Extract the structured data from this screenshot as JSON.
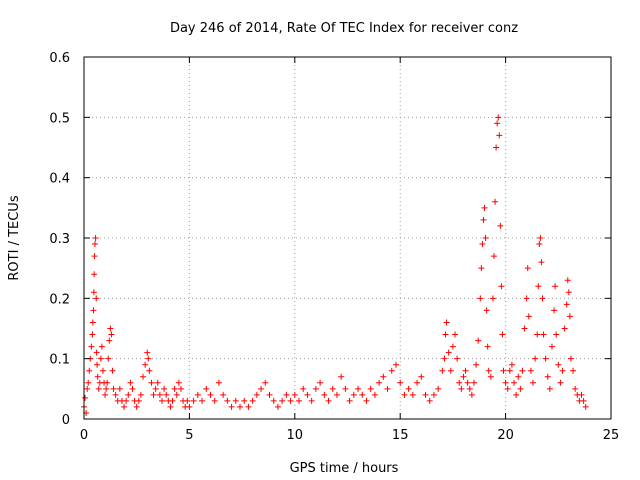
{
  "chart_data": {
    "type": "scatter",
    "title": "Day 246 of 2014, Rate Of TEC Index for receiver conz",
    "xlabel": "GPS time / hours",
    "ylabel": "ROTI / TECUs",
    "xlim": [
      0,
      25
    ],
    "ylim": [
      0,
      0.6
    ],
    "xticks": [
      0,
      5,
      10,
      15,
      20,
      25
    ],
    "yticks": [
      0,
      0.1,
      0.2,
      0.3,
      0.4,
      0.5,
      0.6
    ],
    "ytick_labels": [
      "0",
      "0.1",
      "0.2",
      "0.3",
      "0.4",
      "0.5",
      "0.6"
    ],
    "grid": true,
    "marker": "+",
    "color": "#ff0000",
    "series": [
      {
        "points": [
          [
            0.0,
            0.02
          ],
          [
            0.05,
            0.035
          ],
          [
            0.1,
            0.01
          ],
          [
            0.15,
            0.05
          ],
          [
            0.2,
            0.06
          ],
          [
            0.25,
            0.08
          ],
          [
            0.3,
            0.1
          ],
          [
            0.35,
            0.12
          ],
          [
            0.4,
            0.14
          ],
          [
            0.42,
            0.16
          ],
          [
            0.45,
            0.18
          ],
          [
            0.47,
            0.21
          ],
          [
            0.48,
            0.24
          ],
          [
            0.5,
            0.27
          ],
          [
            0.52,
            0.29
          ],
          [
            0.55,
            0.3
          ],
          [
            0.58,
            0.2
          ],
          [
            0.6,
            0.11
          ],
          [
            0.62,
            0.09
          ],
          [
            0.65,
            0.07
          ],
          [
            0.7,
            0.05
          ],
          [
            0.75,
            0.06
          ],
          [
            0.8,
            0.1
          ],
          [
            0.85,
            0.12
          ],
          [
            0.9,
            0.08
          ],
          [
            0.95,
            0.06
          ],
          [
            1.0,
            0.04
          ],
          [
            1.05,
            0.05
          ],
          [
            1.1,
            0.06
          ],
          [
            1.15,
            0.1
          ],
          [
            1.2,
            0.13
          ],
          [
            1.25,
            0.15
          ],
          [
            1.3,
            0.14
          ],
          [
            1.35,
            0.08
          ],
          [
            1.4,
            0.05
          ],
          [
            1.5,
            0.04
          ],
          [
            1.6,
            0.03
          ],
          [
            1.7,
            0.05
          ],
          [
            1.8,
            0.03
          ],
          [
            1.9,
            0.02
          ],
          [
            2.0,
            0.03
          ],
          [
            2.1,
            0.04
          ],
          [
            2.2,
            0.06
          ],
          [
            2.3,
            0.05
          ],
          [
            2.4,
            0.03
          ],
          [
            2.5,
            0.02
          ],
          [
            2.6,
            0.03
          ],
          [
            2.7,
            0.04
          ],
          [
            2.8,
            0.07
          ],
          [
            2.9,
            0.09
          ],
          [
            3.0,
            0.11
          ],
          [
            3.05,
            0.1
          ],
          [
            3.1,
            0.08
          ],
          [
            3.2,
            0.06
          ],
          [
            3.3,
            0.04
          ],
          [
            3.4,
            0.05
          ],
          [
            3.5,
            0.06
          ],
          [
            3.6,
            0.04
          ],
          [
            3.7,
            0.03
          ],
          [
            3.8,
            0.05
          ],
          [
            3.9,
            0.04
          ],
          [
            4.0,
            0.03
          ],
          [
            4.1,
            0.02
          ],
          [
            4.2,
            0.03
          ],
          [
            4.3,
            0.05
          ],
          [
            4.4,
            0.04
          ],
          [
            4.5,
            0.06
          ],
          [
            4.6,
            0.05
          ],
          [
            4.7,
            0.03
          ],
          [
            4.8,
            0.02
          ],
          [
            4.9,
            0.03
          ],
          [
            5.0,
            0.02
          ],
          [
            5.2,
            0.03
          ],
          [
            5.4,
            0.04
          ],
          [
            5.6,
            0.03
          ],
          [
            5.8,
            0.05
          ],
          [
            6.0,
            0.04
          ],
          [
            6.2,
            0.03
          ],
          [
            6.4,
            0.06
          ],
          [
            6.6,
            0.04
          ],
          [
            6.8,
            0.03
          ],
          [
            7.0,
            0.02
          ],
          [
            7.2,
            0.03
          ],
          [
            7.4,
            0.02
          ],
          [
            7.6,
            0.03
          ],
          [
            7.8,
            0.02
          ],
          [
            8.0,
            0.03
          ],
          [
            8.2,
            0.04
          ],
          [
            8.4,
            0.05
          ],
          [
            8.6,
            0.06
          ],
          [
            8.8,
            0.04
          ],
          [
            9.0,
            0.03
          ],
          [
            9.2,
            0.02
          ],
          [
            9.4,
            0.03
          ],
          [
            9.6,
            0.04
          ],
          [
            9.8,
            0.03
          ],
          [
            10.0,
            0.04
          ],
          [
            10.2,
            0.03
          ],
          [
            10.4,
            0.05
          ],
          [
            10.6,
            0.04
          ],
          [
            10.8,
            0.03
          ],
          [
            11.0,
            0.05
          ],
          [
            11.2,
            0.06
          ],
          [
            11.4,
            0.04
          ],
          [
            11.6,
            0.03
          ],
          [
            11.8,
            0.05
          ],
          [
            12.0,
            0.04
          ],
          [
            12.2,
            0.07
          ],
          [
            12.4,
            0.05
          ],
          [
            12.6,
            0.03
          ],
          [
            12.8,
            0.04
          ],
          [
            13.0,
            0.05
          ],
          [
            13.2,
            0.04
          ],
          [
            13.4,
            0.03
          ],
          [
            13.6,
            0.05
          ],
          [
            13.8,
            0.04
          ],
          [
            14.0,
            0.06
          ],
          [
            14.2,
            0.07
          ],
          [
            14.4,
            0.05
          ],
          [
            14.6,
            0.08
          ],
          [
            14.8,
            0.09
          ],
          [
            15.0,
            0.06
          ],
          [
            15.2,
            0.04
          ],
          [
            15.4,
            0.05
          ],
          [
            15.6,
            0.04
          ],
          [
            15.8,
            0.06
          ],
          [
            16.0,
            0.07
          ],
          [
            16.2,
            0.04
          ],
          [
            16.4,
            0.03
          ],
          [
            16.6,
            0.04
          ],
          [
            16.8,
            0.05
          ],
          [
            17.0,
            0.08
          ],
          [
            17.1,
            0.1
          ],
          [
            17.15,
            0.14
          ],
          [
            17.2,
            0.16
          ],
          [
            17.3,
            0.11
          ],
          [
            17.4,
            0.08
          ],
          [
            17.5,
            0.12
          ],
          [
            17.6,
            0.14
          ],
          [
            17.7,
            0.1
          ],
          [
            17.8,
            0.06
          ],
          [
            17.9,
            0.05
          ],
          [
            18.0,
            0.07
          ],
          [
            18.1,
            0.08
          ],
          [
            18.2,
            0.06
          ],
          [
            18.3,
            0.05
          ],
          [
            18.4,
            0.04
          ],
          [
            18.5,
            0.06
          ],
          [
            18.6,
            0.09
          ],
          [
            18.7,
            0.13
          ],
          [
            18.8,
            0.2
          ],
          [
            18.85,
            0.25
          ],
          [
            18.9,
            0.29
          ],
          [
            18.95,
            0.33
          ],
          [
            19.0,
            0.35
          ],
          [
            19.05,
            0.3
          ],
          [
            19.1,
            0.18
          ],
          [
            19.15,
            0.12
          ],
          [
            19.2,
            0.08
          ],
          [
            19.3,
            0.07
          ],
          [
            19.4,
            0.2
          ],
          [
            19.45,
            0.27
          ],
          [
            19.5,
            0.36
          ],
          [
            19.55,
            0.45
          ],
          [
            19.6,
            0.49
          ],
          [
            19.65,
            0.5
          ],
          [
            19.7,
            0.47
          ],
          [
            19.75,
            0.32
          ],
          [
            19.8,
            0.22
          ],
          [
            19.85,
            0.14
          ],
          [
            19.9,
            0.08
          ],
          [
            20.0,
            0.06
          ],
          [
            20.1,
            0.05
          ],
          [
            20.2,
            0.08
          ],
          [
            20.3,
            0.09
          ],
          [
            20.4,
            0.06
          ],
          [
            20.5,
            0.04
          ],
          [
            20.6,
            0.07
          ],
          [
            20.7,
            0.05
          ],
          [
            20.8,
            0.08
          ],
          [
            20.9,
            0.15
          ],
          [
            21.0,
            0.2
          ],
          [
            21.05,
            0.25
          ],
          [
            21.1,
            0.17
          ],
          [
            21.2,
            0.08
          ],
          [
            21.3,
            0.06
          ],
          [
            21.4,
            0.1
          ],
          [
            21.5,
            0.14
          ],
          [
            21.55,
            0.22
          ],
          [
            21.6,
            0.29
          ],
          [
            21.65,
            0.3
          ],
          [
            21.7,
            0.26
          ],
          [
            21.75,
            0.2
          ],
          [
            21.8,
            0.14
          ],
          [
            21.9,
            0.1
          ],
          [
            22.0,
            0.07
          ],
          [
            22.1,
            0.05
          ],
          [
            22.2,
            0.12
          ],
          [
            22.3,
            0.18
          ],
          [
            22.35,
            0.22
          ],
          [
            22.4,
            0.14
          ],
          [
            22.5,
            0.09
          ],
          [
            22.6,
            0.06
          ],
          [
            22.7,
            0.08
          ],
          [
            22.8,
            0.15
          ],
          [
            22.9,
            0.19
          ],
          [
            22.95,
            0.23
          ],
          [
            23.0,
            0.21
          ],
          [
            23.05,
            0.17
          ],
          [
            23.1,
            0.1
          ],
          [
            23.2,
            0.08
          ],
          [
            23.3,
            0.05
          ],
          [
            23.4,
            0.04
          ],
          [
            23.5,
            0.03
          ],
          [
            23.6,
            0.04
          ],
          [
            23.7,
            0.03
          ],
          [
            23.8,
            0.02
          ]
        ]
      }
    ]
  }
}
